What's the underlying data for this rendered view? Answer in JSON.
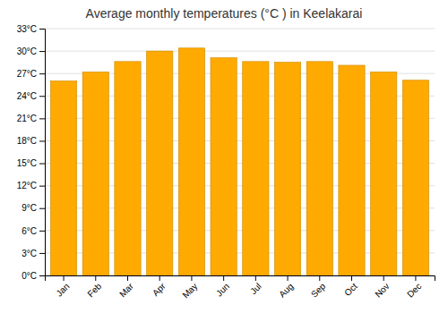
{
  "chart_data": {
    "type": "bar",
    "title": "Average monthly temperatures (°C ) in Keelakarai",
    "categories": [
      "Jan",
      "Feb",
      "Mar",
      "Apr",
      "May",
      "Jun",
      "Jul",
      "Aug",
      "Sep",
      "Oct",
      "Nov",
      "Dec"
    ],
    "values": [
      26.0,
      27.2,
      28.6,
      30.0,
      30.4,
      29.1,
      28.6,
      28.5,
      28.6,
      28.1,
      27.2,
      26.1
    ],
    "color": "#FFAA00",
    "ylim": [
      0,
      33
    ],
    "yticks": [
      {
        "value": 0,
        "label": "0°C"
      },
      {
        "value": 3,
        "label": "3°C"
      },
      {
        "value": 6,
        "label": "6°C"
      },
      {
        "value": 9,
        "label": "9°C"
      },
      {
        "value": 12,
        "label": "12°C"
      },
      {
        "value": 15,
        "label": "15°C"
      },
      {
        "value": 18,
        "label": "18°C"
      },
      {
        "value": 21,
        "label": "21°C"
      },
      {
        "value": 24,
        "label": "24°C"
      },
      {
        "value": 27,
        "label": "27°C"
      },
      {
        "value": 30,
        "label": "30°C"
      },
      {
        "value": 33,
        "label": "33°C"
      }
    ],
    "grid": true
  }
}
